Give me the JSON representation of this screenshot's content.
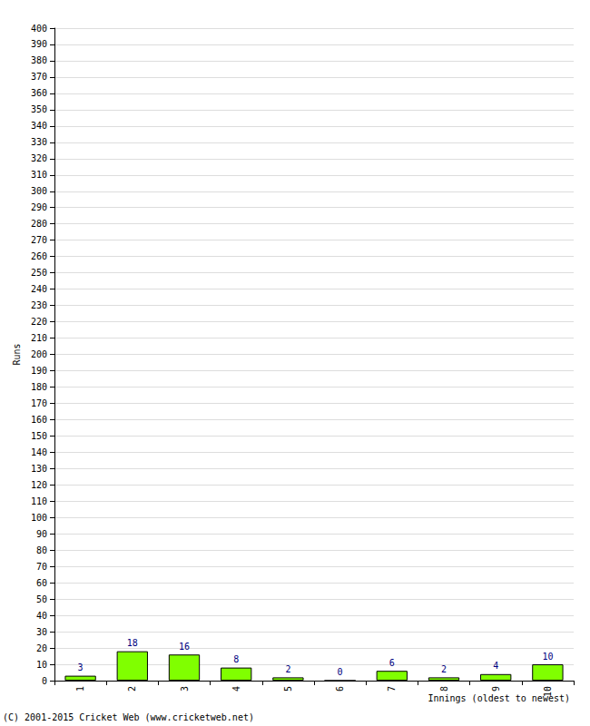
{
  "chart_data": {
    "type": "bar",
    "categories": [
      "1",
      "2",
      "3",
      "4",
      "5",
      "6",
      "7",
      "8",
      "9",
      "10"
    ],
    "values": [
      3,
      18,
      16,
      8,
      2,
      0,
      6,
      2,
      4,
      10
    ],
    "color": "#80ff00",
    "ylim": [
      0,
      400
    ],
    "yticks": [
      0,
      10,
      20,
      30,
      40,
      50,
      60,
      70,
      80,
      90,
      100,
      110,
      120,
      130,
      140,
      150,
      160,
      170,
      180,
      190,
      200,
      210,
      220,
      230,
      240,
      250,
      260,
      270,
      280,
      290,
      300,
      310,
      320,
      330,
      340,
      350,
      360,
      370,
      380,
      390,
      400
    ],
    "y_label": "Runs",
    "x_label": "Innings (oldest to newest)",
    "annotations": [
      "(C) 2001-2015 Cricket Web (www.cricketweb.net)"
    ],
    "grid": true,
    "data_labels": true
  }
}
